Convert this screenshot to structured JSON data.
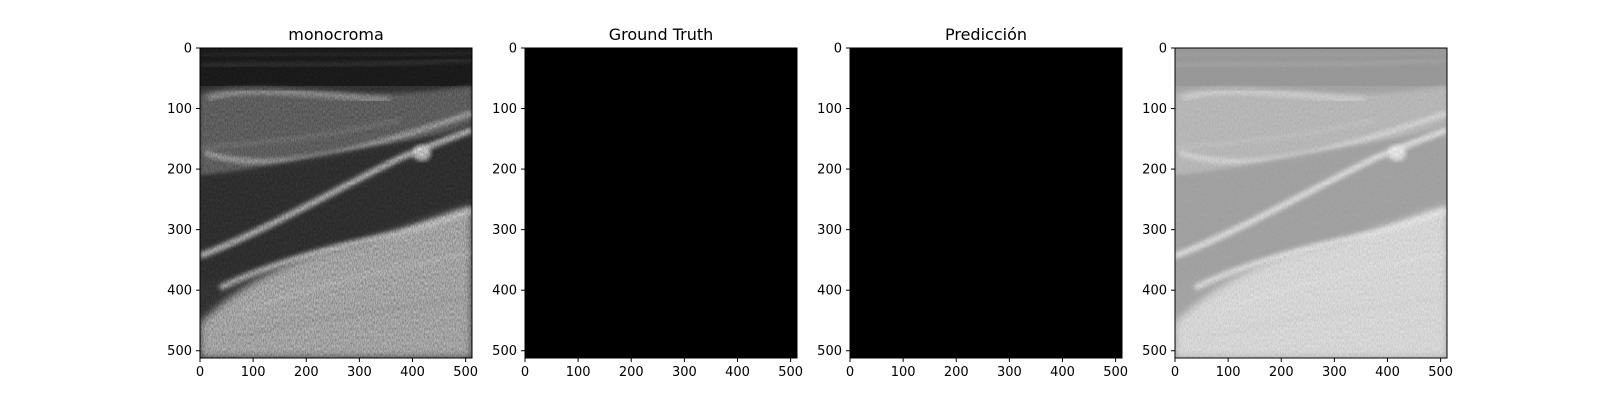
{
  "figure": {
    "panels": [
      {
        "title": "monocroma",
        "image": "grayscale-ultrasound-image",
        "style": "raw"
      },
      {
        "title": "Ground Truth",
        "image": "empty-black-mask",
        "style": "black"
      },
      {
        "title": "Predicción",
        "image": "empty-black-mask",
        "style": "black"
      },
      {
        "title": "",
        "image": "ultrasound-image-with-mask-overlay",
        "style": "faded"
      }
    ],
    "xticks": [
      "0",
      "100",
      "200",
      "300",
      "400",
      "500"
    ],
    "yticks": [
      "0",
      "100",
      "200",
      "300",
      "400",
      "500"
    ],
    "colors": {
      "mask": "#000000",
      "axes": "#000000",
      "background": "#ffffff"
    }
  }
}
